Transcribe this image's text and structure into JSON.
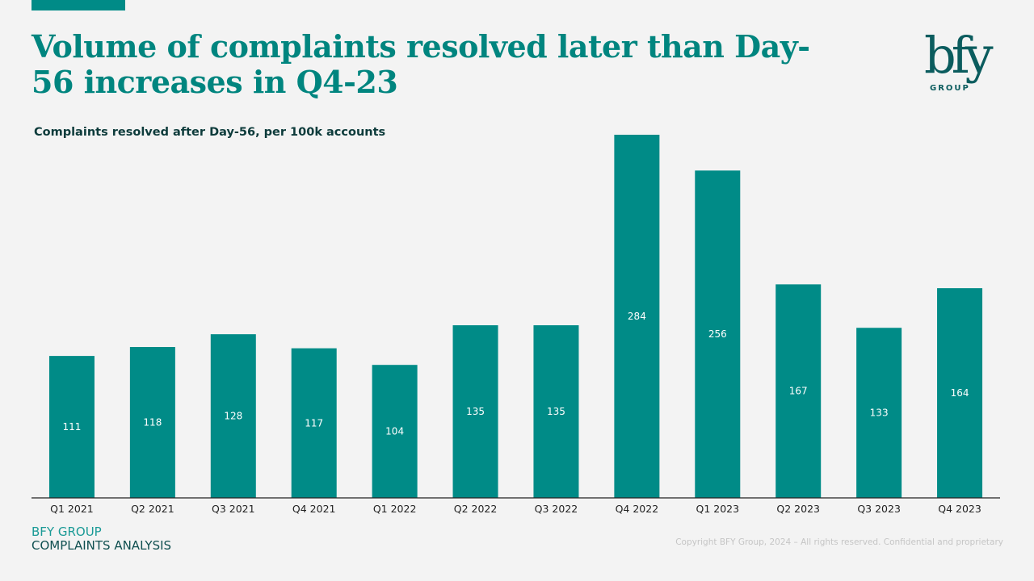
{
  "slide": {
    "title": "Volume of complaints resolved later than Day-56 increases in Q4-23",
    "logo": {
      "mark": "bfy",
      "text": "GROUP"
    },
    "footer": {
      "brand": "BFY GROUP",
      "section": "COMPLAINTS ANALYSIS",
      "copyright": "Copyright BFY Group, 2024 – All rights reserved. Confidential and proprietary"
    },
    "colors": {
      "accent": "#008b87",
      "title": "#00857f",
      "logo": "#0b5c5e"
    }
  },
  "chart_data": {
    "type": "bar",
    "title": "Complaints resolved after Day-56, per 100k accounts",
    "xlabel": "",
    "ylabel": "",
    "categories": [
      "Q1 2021",
      "Q2 2021",
      "Q3 2021",
      "Q4 2021",
      "Q1 2022",
      "Q2 2022",
      "Q3 2022",
      "Q4 2022",
      "Q1 2023",
      "Q2 2023",
      "Q3 2023",
      "Q4 2023"
    ],
    "values": [
      111,
      118,
      128,
      117,
      104,
      135,
      135,
      284,
      256,
      167,
      133,
      164
    ],
    "ylim": [
      0,
      290
    ],
    "grid": false,
    "legend": "none",
    "bar_color": "#008b87",
    "data_labels": "inside"
  }
}
